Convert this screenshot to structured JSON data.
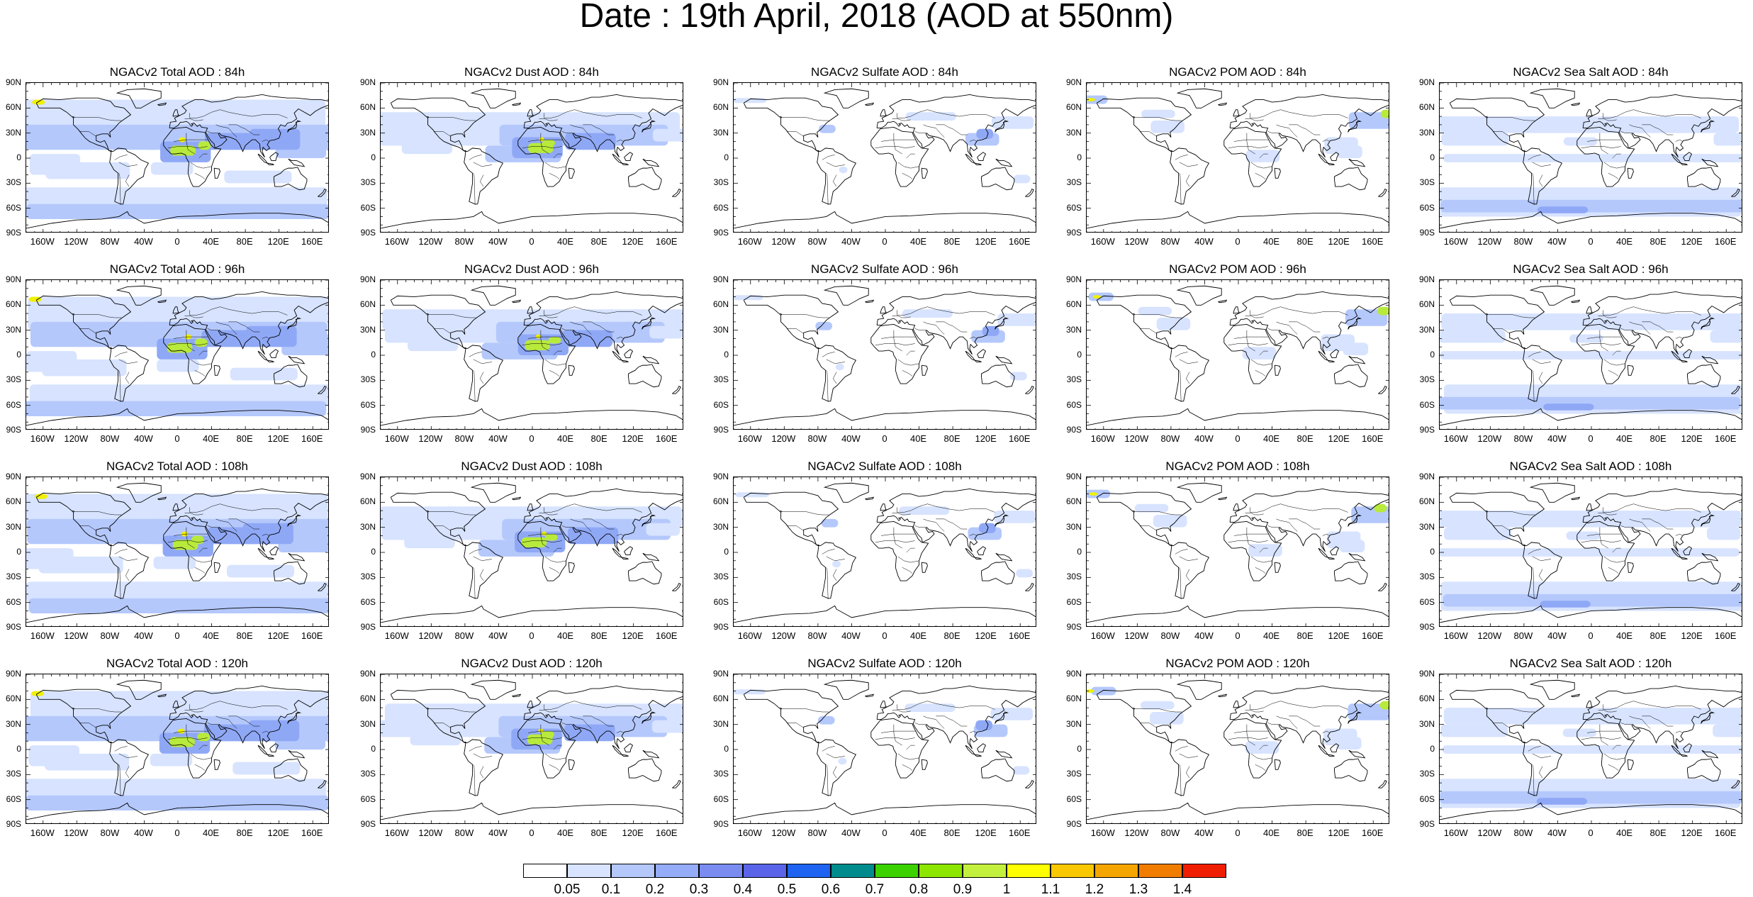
{
  "title": "Date : 19th April, 2018 (AOD at 550nm)",
  "lat_labels": [
    "90N",
    "60N",
    "30N",
    "0",
    "30S",
    "60S",
    "90S"
  ],
  "lon_labels": [
    "160W",
    "120W",
    "80W",
    "40W",
    "0",
    "40E",
    "80E",
    "120E",
    "160E"
  ],
  "panel_titles": [
    [
      "NGACv2 Total AOD : 84h",
      "NGACv2 Dust AOD : 84h",
      "NGACv2 Sulfate AOD : 84h",
      "NGACv2 POM AOD : 84h",
      "NGACv2 Sea Salt AOD : 84h"
    ],
    [
      "NGACv2 Total AOD : 96h",
      "NGACv2 Dust AOD : 96h",
      "NGACv2 Sulfate AOD : 96h",
      "NGACv2 POM AOD : 96h",
      "NGACv2 Sea Salt AOD : 96h"
    ],
    [
      "NGACv2 Total AOD : 108h",
      "NGACv2 Dust AOD : 108h",
      "NGACv2 Sulfate AOD : 108h",
      "NGACv2 POM AOD : 108h",
      "NGACv2 Sea Salt AOD : 108h"
    ],
    [
      "NGACv2 Total AOD : 120h",
      "NGACv2 Dust AOD : 120h",
      "NGACv2 Sulfate AOD : 120h",
      "NGACv2 POM AOD : 120h",
      "NGACv2 Sea Salt  AOD : 120h"
    ]
  ],
  "colorbar": {
    "levels": [
      "0.05",
      "0.1",
      "0.2",
      "0.3",
      "0.4",
      "0.5",
      "0.6",
      "0.7",
      "0.8",
      "0.9",
      "1",
      "1.1",
      "1.2",
      "1.3",
      "1.4"
    ],
    "colors": [
      "#ffffff",
      "#d7e3ff",
      "#b4c8fc",
      "#95acf8",
      "#7a8cf0",
      "#5a64e8",
      "#1e64f0",
      "#008c8c",
      "#3cd200",
      "#8ce600",
      "#c3f03c",
      "#ffff00",
      "#fac800",
      "#f5a500",
      "#f07d00",
      "#f01e00"
    ]
  },
  "palette": {
    "land": "#e9eefc",
    "light": "#d7e3ff",
    "mid": "#b4c8fc",
    "strong": "#8fa8f6",
    "dust_hot": "#b8ea3c",
    "dust_yellow": "#f0f000"
  }
}
